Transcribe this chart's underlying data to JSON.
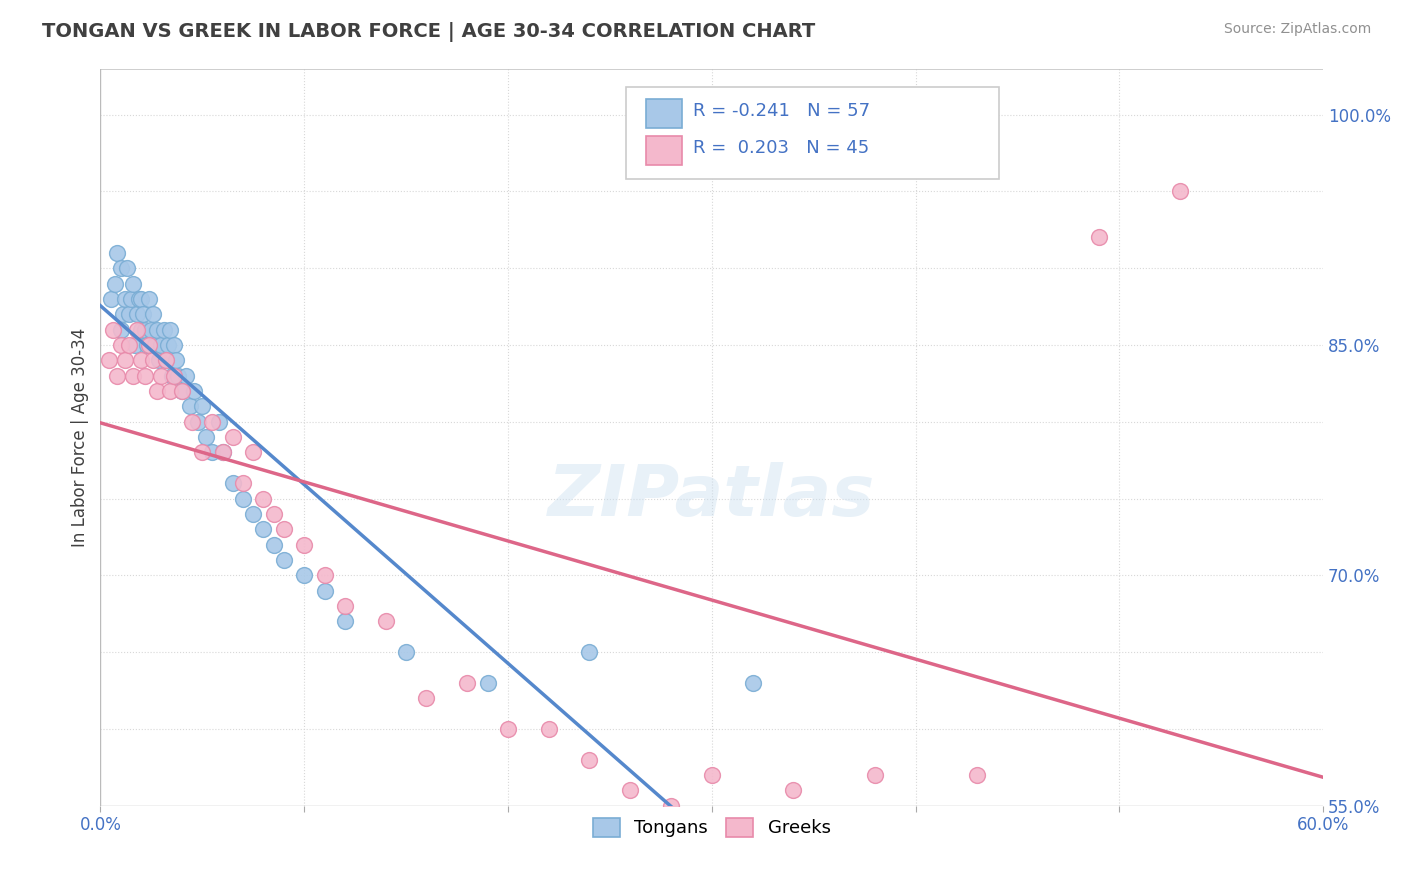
{
  "title": "TONGAN VS GREEK IN LABOR FORCE | AGE 30-34 CORRELATION CHART",
  "source": "Source: ZipAtlas.com",
  "ylabel": "In Labor Force | Age 30-34",
  "x_min": 0.0,
  "x_max": 0.6,
  "y_min": 0.55,
  "y_max": 1.03,
  "tongan_R": -0.241,
  "tongan_N": 57,
  "greek_R": 0.203,
  "greek_N": 45,
  "tongan_color": "#a8c8e8",
  "greek_color": "#f4b8cc",
  "tongan_edge": "#7aadd4",
  "greek_edge": "#e88aaa",
  "regression_blue": "#5588cc",
  "regression_pink": "#dd6688",
  "watermark": "ZIPatlas",
  "background_color": "#ffffff",
  "grid_color": "#d8d8d8",
  "tongan_x": [
    0.005,
    0.007,
    0.008,
    0.01,
    0.01,
    0.011,
    0.012,
    0.013,
    0.014,
    0.015,
    0.016,
    0.017,
    0.018,
    0.019,
    0.02,
    0.02,
    0.021,
    0.022,
    0.023,
    0.024,
    0.025,
    0.026,
    0.027,
    0.028,
    0.029,
    0.03,
    0.031,
    0.032,
    0.033,
    0.034,
    0.035,
    0.036,
    0.037,
    0.038,
    0.04,
    0.042,
    0.044,
    0.046,
    0.048,
    0.05,
    0.052,
    0.055,
    0.058,
    0.06,
    0.065,
    0.07,
    0.075,
    0.08,
    0.085,
    0.09,
    0.1,
    0.11,
    0.12,
    0.15,
    0.19,
    0.24,
    0.32
  ],
  "tongan_y": [
    0.88,
    0.89,
    0.91,
    0.9,
    0.86,
    0.87,
    0.88,
    0.9,
    0.87,
    0.88,
    0.89,
    0.85,
    0.87,
    0.88,
    0.86,
    0.88,
    0.87,
    0.86,
    0.85,
    0.88,
    0.86,
    0.87,
    0.85,
    0.86,
    0.84,
    0.85,
    0.86,
    0.84,
    0.85,
    0.86,
    0.83,
    0.85,
    0.84,
    0.83,
    0.82,
    0.83,
    0.81,
    0.82,
    0.8,
    0.81,
    0.79,
    0.78,
    0.8,
    0.78,
    0.76,
    0.75,
    0.74,
    0.73,
    0.72,
    0.71,
    0.7,
    0.69,
    0.67,
    0.65,
    0.63,
    0.65,
    0.63
  ],
  "greek_x": [
    0.004,
    0.006,
    0.008,
    0.01,
    0.012,
    0.014,
    0.016,
    0.018,
    0.02,
    0.022,
    0.024,
    0.026,
    0.028,
    0.03,
    0.032,
    0.034,
    0.036,
    0.04,
    0.045,
    0.05,
    0.055,
    0.06,
    0.065,
    0.07,
    0.075,
    0.08,
    0.085,
    0.09,
    0.1,
    0.11,
    0.12,
    0.14,
    0.16,
    0.18,
    0.2,
    0.22,
    0.24,
    0.26,
    0.28,
    0.3,
    0.34,
    0.38,
    0.43,
    0.49,
    0.53
  ],
  "greek_y": [
    0.84,
    0.86,
    0.83,
    0.85,
    0.84,
    0.85,
    0.83,
    0.86,
    0.84,
    0.83,
    0.85,
    0.84,
    0.82,
    0.83,
    0.84,
    0.82,
    0.83,
    0.82,
    0.8,
    0.78,
    0.8,
    0.78,
    0.79,
    0.76,
    0.78,
    0.75,
    0.74,
    0.73,
    0.72,
    0.7,
    0.68,
    0.67,
    0.62,
    0.63,
    0.6,
    0.6,
    0.58,
    0.56,
    0.55,
    0.57,
    0.56,
    0.57,
    0.57,
    0.92,
    0.95
  ]
}
